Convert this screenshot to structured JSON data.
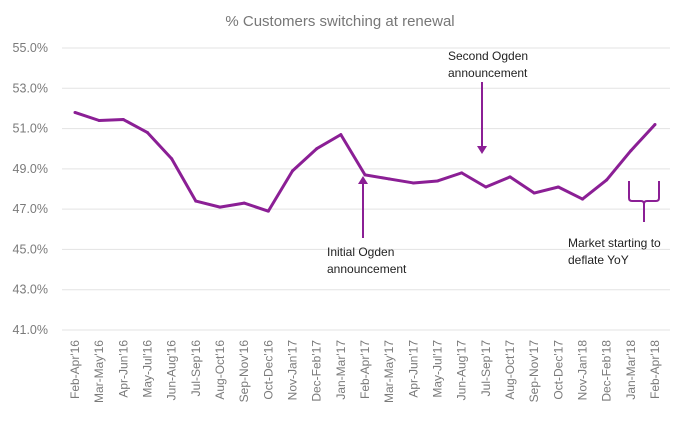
{
  "chart_data": {
    "type": "line",
    "title": "% Customers switching at renewal",
    "xlabel": "",
    "ylabel": "",
    "ylim": [
      41,
      55
    ],
    "yticks": [
      "55.0%",
      "53.0%",
      "51.0%",
      "49.0%",
      "47.0%",
      "45.0%",
      "43.0%",
      "41.0%"
    ],
    "grid": true,
    "line_color": "#8B1F95",
    "categories": [
      "Feb-Apr'16",
      "Mar-May'16",
      "Apr-Jun'16",
      "May-Jul'16",
      "Jun-Aug'16",
      "Jul-Sep'16",
      "Aug-Oct'16",
      "Sep-Nov'16",
      "Oct-Dec'16",
      "Nov-Jan'17",
      "Dec-Feb'17",
      "Jan-Mar'17",
      "Feb-Apr'17",
      "Mar-May'17",
      "Apr-Jun'17",
      "May-Jul'17",
      "Jun-Aug'17",
      "Jul-Sep'17",
      "Aug-Oct'17",
      "Sep-Nov'17",
      "Oct-Dec'17",
      "Nov-Jan'18",
      "Dec-Feb'18",
      "Jan-Mar'18",
      "Feb-Apr'18"
    ],
    "series": [
      {
        "name": "% Customers switching at renewal",
        "values": [
          51.8,
          51.4,
          51.45,
          50.8,
          49.5,
          47.4,
          47.1,
          47.3,
          46.9,
          48.9,
          50.0,
          50.7,
          48.7,
          48.5,
          48.3,
          48.4,
          48.8,
          48.1,
          48.6,
          47.8,
          48.1,
          47.5,
          48.45,
          49.9,
          51.2
        ]
      }
    ],
    "annotations": [
      {
        "text_lines": [
          "Second Ogden",
          "announcement"
        ],
        "points_to": "Jul-Sep'17",
        "arrow": "down"
      },
      {
        "text_lines": [
          "Initial Ogden",
          "announcement"
        ],
        "points_to": "Feb-Apr'17",
        "arrow": "up"
      },
      {
        "text_lines": [
          "Market starting to",
          "deflate YoY"
        ],
        "points_to": "Jan-Mar'18 to Feb-Apr'18",
        "arrow": "bracket"
      }
    ]
  }
}
